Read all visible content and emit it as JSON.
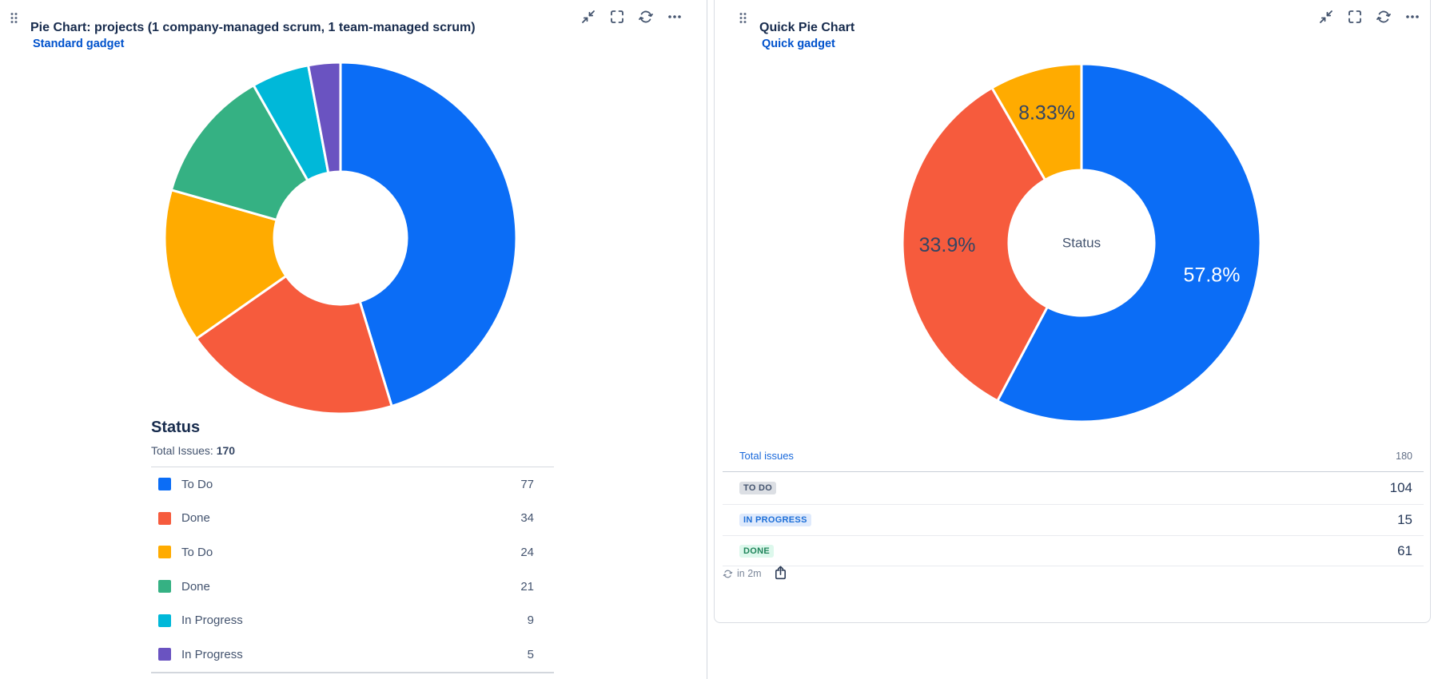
{
  "left_gadget": {
    "title": "Pie Chart: projects (1 company-managed scrum, 1 team-managed scrum)",
    "subtitle_link": "Standard gadget",
    "section_title": "Status",
    "total_label": "Total Issues:",
    "total_value": "170",
    "drag_icon": "drag-handle",
    "actions": [
      "minimize-icon",
      "fullscreen-icon",
      "refresh-icon",
      "more-icon"
    ]
  },
  "right_gadget": {
    "title": "Quick Pie Chart",
    "subtitle_link": "Quick gadget",
    "drag_icon": "drag-handle",
    "actions": [
      "minimize-icon",
      "fullscreen-icon",
      "refresh-icon",
      "more-icon"
    ],
    "table": {
      "total_label": "Total issues",
      "total_value": "180",
      "rows": [
        {
          "badge": "TO DO",
          "value": "104",
          "badge_bg": "#dcdfe4",
          "badge_color": "#44546f"
        },
        {
          "badge": "IN PROGRESS",
          "value": "15",
          "badge_bg": "#dfeafc",
          "badge_color": "#1d6fd8"
        },
        {
          "badge": "DONE",
          "value": "61",
          "badge_bg": "#ddf8ec",
          "badge_color": "#1f845a"
        }
      ]
    },
    "footer": {
      "refresh_icon": "refresh-icon",
      "refresh_countdown": "in 2m",
      "export_icon": "export-icon"
    }
  },
  "chart_data": [
    {
      "type": "pie",
      "donut": true,
      "title": "Status",
      "total_issues": 170,
      "categories": [
        "To Do",
        "Done",
        "To Do",
        "Done",
        "In Progress",
        "In Progress"
      ],
      "values": [
        77,
        34,
        24,
        21,
        9,
        5
      ],
      "colors": [
        "#0b6df6",
        "#f65b3d",
        "#ffab00",
        "#35b183",
        "#00b8d9",
        "#6a53c1"
      ],
      "outer_radius": 220,
      "inner_radius": 83,
      "slice_labels": [],
      "center_label": "",
      "legend_position": "bottom"
    },
    {
      "type": "pie",
      "donut": true,
      "title": "Status",
      "total_issues": 180,
      "categories": [
        "To Do",
        "Done",
        "In Progress"
      ],
      "values": [
        104,
        61,
        15
      ],
      "colors": [
        "#0b6df6",
        "#f65b3d",
        "#ffab00"
      ],
      "outer_radius": 224,
      "inner_radius": 91,
      "slice_labels": [
        "57.8%",
        "33.9%",
        "8.33%"
      ],
      "slice_label_colors": [
        "#ffffff",
        "#344563",
        "#344563"
      ],
      "slice_label_size": 25,
      "slice_label_radius": 168,
      "center_label": "Status",
      "center_label_color": "#44546f",
      "center_label_size": 17,
      "legend_position": "none"
    }
  ]
}
